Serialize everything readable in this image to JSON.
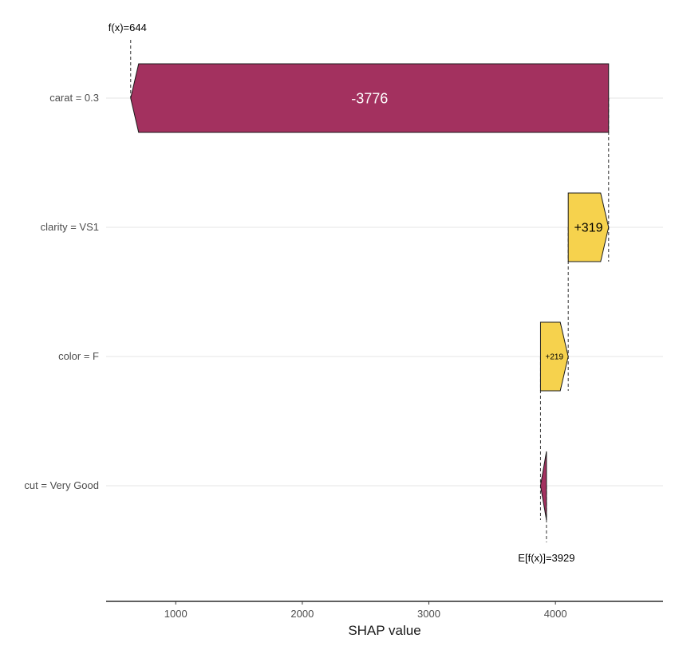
{
  "chart_data": {
    "type": "waterfall",
    "xlabel": "SHAP value",
    "xlim": [
      450,
      4850
    ],
    "x_ticks": [
      1000,
      2000,
      3000,
      4000
    ],
    "x_tick_labels": [
      "1000",
      "2000",
      "3000",
      "4000"
    ],
    "baseline": 3929,
    "baseline_label": "E[f(x)]=3929",
    "prediction": 644,
    "prediction_label": "f(x)=644",
    "features": [
      {
        "label": "carat = 0.3",
        "value": -3776,
        "value_label": "-3776",
        "start": 4420,
        "end": 644
      },
      {
        "label": "clarity = VS1",
        "value": 319,
        "value_label": "+319",
        "start": 4101,
        "end": 4420
      },
      {
        "label": "color = F",
        "value": 219,
        "value_label": "+219",
        "start": 3882,
        "end": 4101
      },
      {
        "label": "cut = Very Good",
        "value": -47,
        "value_label": "",
        "start": 3929,
        "end": 3882
      }
    ],
    "colors": {
      "positive": "#f6d24d",
      "negative": "#a3315f"
    },
    "grid": "horizontal",
    "legend": "none"
  }
}
